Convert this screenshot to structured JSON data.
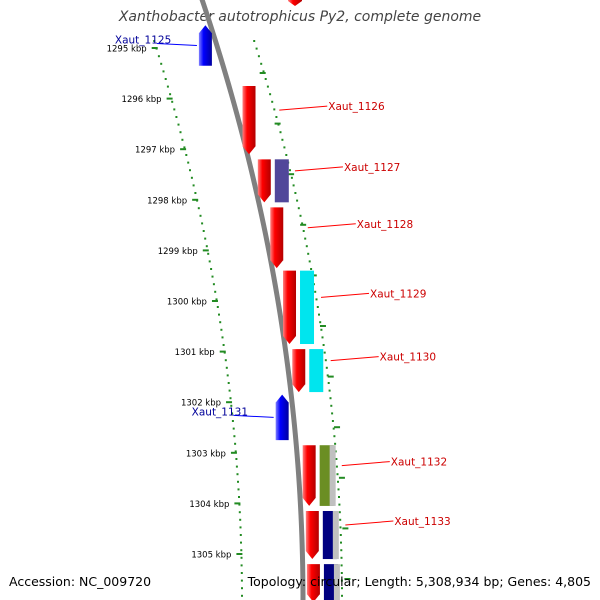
{
  "title": "Xanthobacter autotrophicus Py2, complete genome",
  "accession_label": "Accession: NC_009720",
  "topology_label": "Topology: circular; Length: 5,308,934 bp; Genes: 4,805",
  "colors": {
    "backbone": "#808080",
    "tick_green": "#228b22",
    "forward_cds": "#ff0000",
    "reverse_cds": "#0000ff",
    "forward_label": "#cc0000",
    "reverse_label": "#000099"
  },
  "ticks": [
    {
      "label": "1295 kbp"
    },
    {
      "label": "1296 kbp"
    },
    {
      "label": "1297 kbp"
    },
    {
      "label": "1298 kbp"
    },
    {
      "label": "1299 kbp"
    },
    {
      "label": "1300 kbp"
    },
    {
      "label": "1301 kbp"
    },
    {
      "label": "1302 kbp"
    },
    {
      "label": "1303 kbp"
    },
    {
      "label": "1304 kbp"
    },
    {
      "label": "1305 kbp"
    }
  ],
  "genes": [
    {
      "name": "Xaut_1125",
      "strand": "reverse",
      "start_kbp": 1294.55,
      "end_kbp": 1295.35,
      "extra": []
    },
    {
      "name": "Xaut_1126",
      "strand": "forward",
      "start_kbp": 1295.75,
      "end_kbp": 1297.1,
      "extra": []
    },
    {
      "name": "Xaut_1127",
      "strand": "forward",
      "start_kbp": 1297.2,
      "end_kbp": 1298.05,
      "extra": [
        "#51479a"
      ]
    },
    {
      "name": "Xaut_1128",
      "strand": "forward",
      "start_kbp": 1298.15,
      "end_kbp": 1299.35,
      "extra": []
    },
    {
      "name": "Xaut_1129",
      "strand": "forward",
      "start_kbp": 1299.4,
      "end_kbp": 1300.85,
      "extra": [
        "#00e5ee"
      ]
    },
    {
      "name": "Xaut_1130",
      "strand": "forward",
      "start_kbp": 1300.95,
      "end_kbp": 1301.8,
      "extra": [
        "#00e5ee"
      ]
    },
    {
      "name": "Xaut_1131",
      "strand": "reverse",
      "start_kbp": 1301.85,
      "end_kbp": 1302.75,
      "extra": []
    },
    {
      "name": "Xaut_1132",
      "strand": "forward",
      "start_kbp": 1302.85,
      "end_kbp": 1304.05,
      "extra": [
        "#6b8e23",
        "#c0c0c0"
      ]
    },
    {
      "name": "Xaut_1133",
      "strand": "forward",
      "start_kbp": 1304.15,
      "end_kbp": 1305.1,
      "extra": [
        "#000080",
        "#c0c0c0"
      ]
    },
    {
      "name": "",
      "strand": "forward",
      "start_kbp": 1305.2,
      "end_kbp": 1305.95,
      "extra": [
        "#000080",
        "#c0c0c0"
      ]
    }
  ],
  "top_partial_gene": {
    "strand": "forward"
  }
}
